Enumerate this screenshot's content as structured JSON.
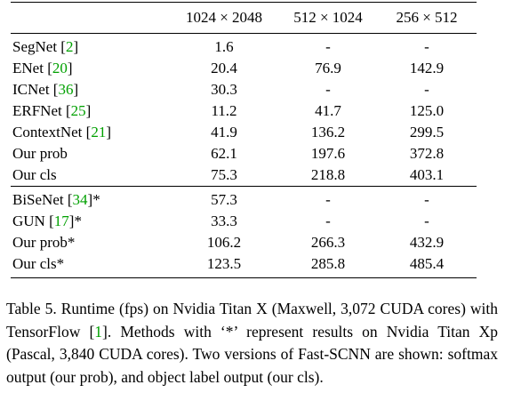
{
  "table": {
    "columns": [
      "",
      "1024 × 2048",
      "512 × 1024",
      "256 × 512"
    ],
    "groups": [
      [
        {
          "name": "SegNet",
          "ref": "2",
          "suffix": "",
          "values": [
            "1.6",
            "-",
            "-"
          ]
        },
        {
          "name": "ENet",
          "ref": "20",
          "suffix": "",
          "values": [
            "20.4",
            "76.9",
            "142.9"
          ]
        },
        {
          "name": "ICNet",
          "ref": "36",
          "suffix": "",
          "values": [
            "30.3",
            "-",
            "-"
          ]
        },
        {
          "name": "ERFNet",
          "ref": "25",
          "suffix": "",
          "values": [
            "11.2",
            "41.7",
            "125.0"
          ]
        },
        {
          "name": "ContextNet",
          "ref": "21",
          "suffix": "",
          "values": [
            "41.9",
            "136.2",
            "299.5"
          ]
        },
        {
          "name": "Our prob",
          "ref": "",
          "suffix": "",
          "values": [
            "62.1",
            "197.6",
            "372.8"
          ]
        },
        {
          "name": "Our cls",
          "ref": "",
          "suffix": "",
          "values": [
            "75.3",
            "218.8",
            "403.1"
          ]
        }
      ],
      [
        {
          "name": "BiSeNet",
          "ref": "34",
          "suffix": "*",
          "values": [
            "57.3",
            "-",
            "-"
          ]
        },
        {
          "name": "GUN",
          "ref": "17",
          "suffix": "*",
          "values": [
            "33.3",
            "-",
            "-"
          ]
        },
        {
          "name": "Our prob*",
          "ref": "",
          "suffix": "",
          "values": [
            "106.2",
            "266.3",
            "432.9"
          ]
        },
        {
          "name": "Our cls*",
          "ref": "",
          "suffix": "",
          "values": [
            "123.5",
            "285.8",
            "485.4"
          ]
        }
      ]
    ]
  },
  "caption": {
    "part1": "Table 5. Runtime (fps) on Nvidia Titan X (Maxwell, 3,072 CUDA cores) with TensorFlow ",
    "ref": "1",
    "part2": ".  Methods with ‘*’ represent results on Nvidia Titan Xp (Pascal, 3,840 CUDA cores). Two versions of Fast-SCNN are shown: softmax output (our prob), and object label output (our cls)."
  }
}
